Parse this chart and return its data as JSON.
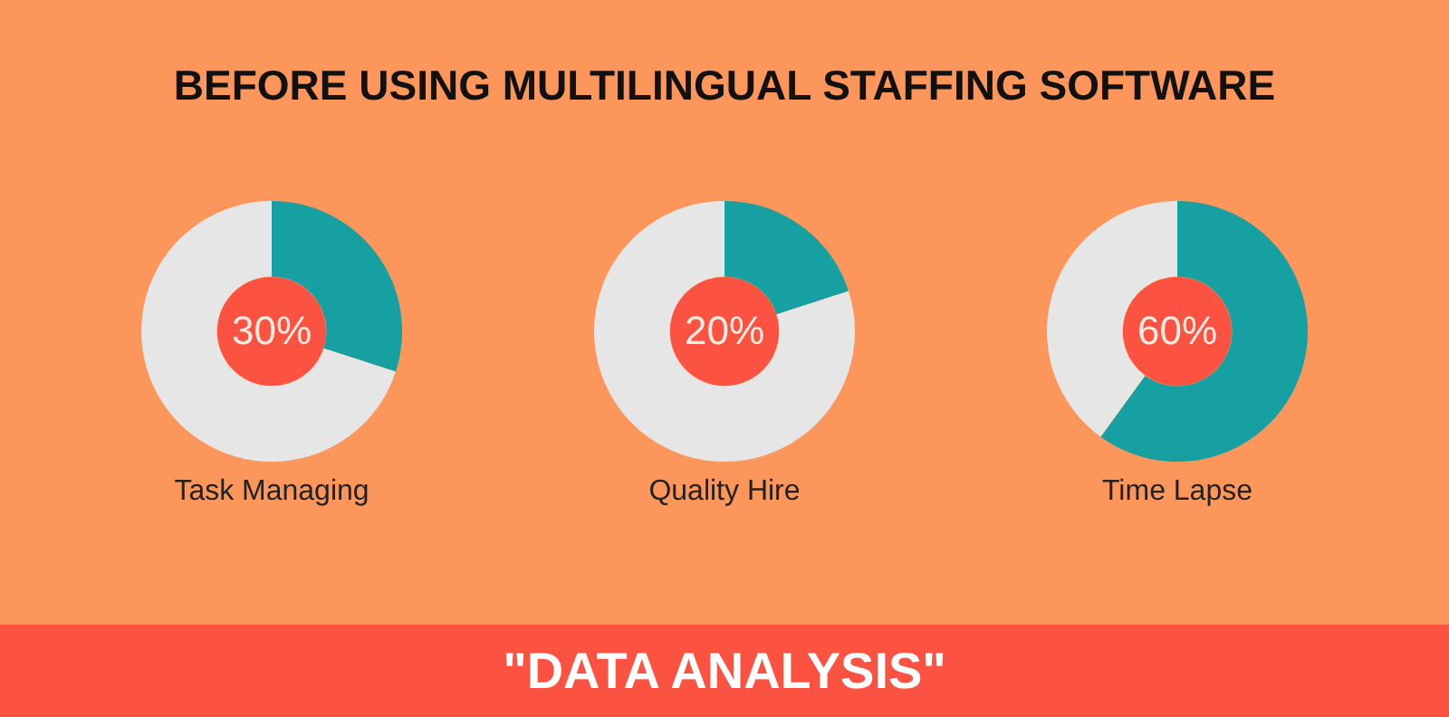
{
  "chart_data": [
    {
      "type": "other",
      "title": "BEFORE USING MULTILINGUAL STAFFING SOFTWARE"
    },
    {
      "type": "donut",
      "title": "Task Managing",
      "categories": [
        null,
        null
      ],
      "values": [
        30,
        70
      ],
      "colors": [
        "#16a0a2",
        "#e6e6e6"
      ],
      "value_labels": [
        "30%",
        null
      ],
      "legend": false
    },
    {
      "type": "donut",
      "title": "Quality Hire",
      "categories": [
        null,
        null
      ],
      "values": [
        20,
        80
      ],
      "colors": [
        "#16a0a2",
        "#e6e6e6"
      ],
      "value_labels": [
        "20%",
        null
      ],
      "legend": false
    },
    {
      "type": "donut",
      "title": "Time Lapse",
      "categories": [
        null,
        null
      ],
      "values": [
        60,
        40
      ],
      "colors": [
        "#16a0a2",
        "#e6e6e6"
      ],
      "value_labels": [
        "60%",
        null
      ],
      "legend": false
    },
    {
      "type": "other",
      "annotations": [
        "\"DATA ANALYSIS\""
      ]
    }
  ]
}
